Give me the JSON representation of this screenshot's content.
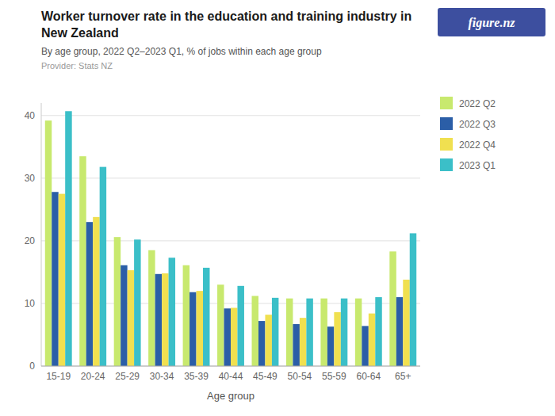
{
  "chart_data": {
    "type": "bar",
    "title": "Worker turnover rate in the education and training industry in New Zealand",
    "subtitle": "By age group, 2022 Q2–2023 Q1, % of jobs within each age group",
    "annotations": [
      "Provider: Stats NZ",
      "figure.nz"
    ],
    "x_label": "Age group",
    "categories": [
      "15-19",
      "20-24",
      "25-29",
      "30-34",
      "35-39",
      "40-44",
      "45-49",
      "50-54",
      "55-59",
      "60-64",
      "65+"
    ],
    "series": [
      {
        "name": "2022 Q2",
        "color": "#c8e96e",
        "values": [
          39.2,
          33.5,
          20.6,
          18.5,
          16.1,
          13.0,
          11.2,
          10.8,
          10.8,
          10.8,
          18.3
        ]
      },
      {
        "name": "2022 Q3",
        "color": "#2b5ea7",
        "values": [
          27.8,
          23.0,
          16.1,
          14.7,
          11.8,
          9.2,
          7.2,
          6.7,
          6.3,
          6.4,
          11.0
        ]
      },
      {
        "name": "2022 Q4",
        "color": "#f0e050",
        "values": [
          27.5,
          23.8,
          15.3,
          14.8,
          12.0,
          9.3,
          8.2,
          7.7,
          8.6,
          8.4,
          13.8
        ]
      },
      {
        "name": "2023 Q1",
        "color": "#3bbfc8",
        "values": [
          40.7,
          31.8,
          20.2,
          17.3,
          15.7,
          12.8,
          10.9,
          10.8,
          10.8,
          11.0,
          21.2
        ]
      }
    ],
    "ylim": [
      0,
      42
    ],
    "yticks": [
      0,
      10,
      20,
      30,
      40
    ],
    "grid": true,
    "legend": "right"
  }
}
